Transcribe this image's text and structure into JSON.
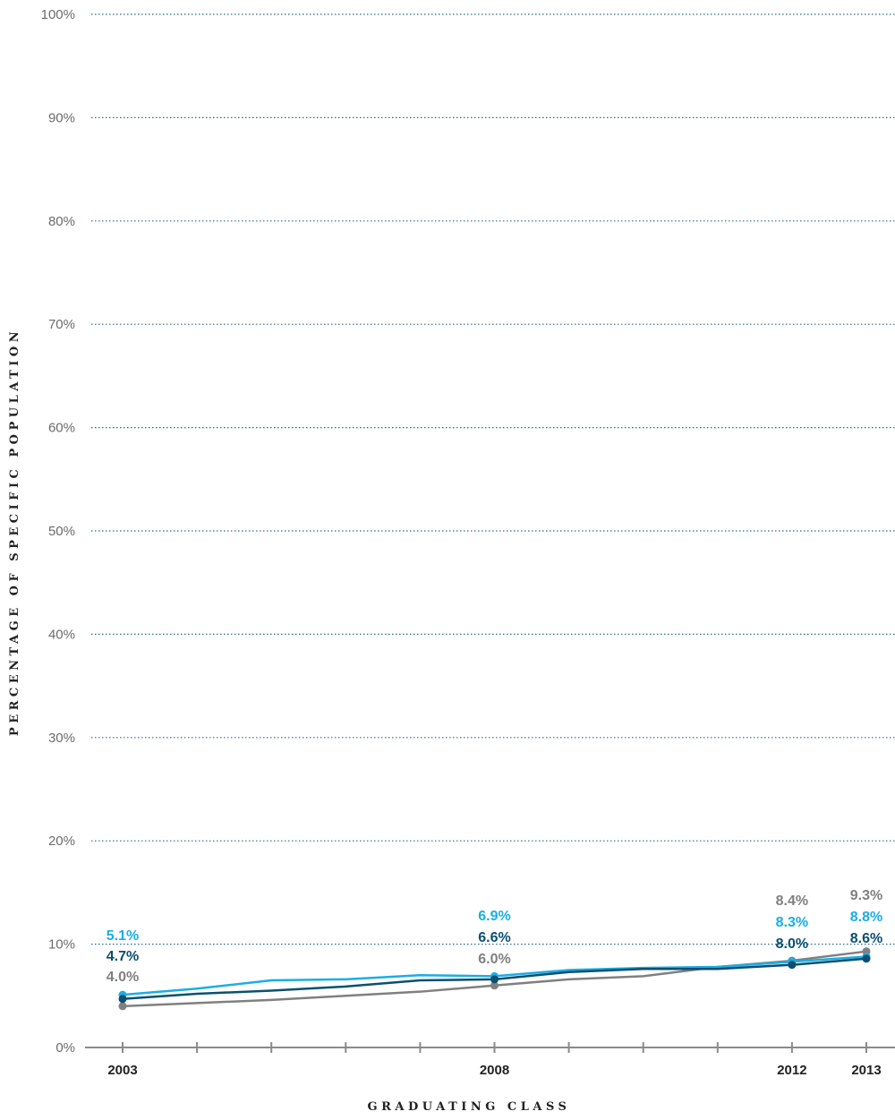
{
  "chart_data": {
    "type": "line",
    "title": "",
    "xlabel": "GRADUATING CLASS",
    "ylabel": "PERCENTAGE OF SPECIFIC POPULATION",
    "x": [
      2003,
      2004,
      2005,
      2006,
      2007,
      2008,
      2009,
      2010,
      2011,
      2012,
      2013
    ],
    "xticks_labeled": [
      "2003",
      "2008",
      "2012",
      "2013"
    ],
    "ylim": [
      0,
      100
    ],
    "yticks": [
      "0%",
      "10%",
      "20%",
      "30%",
      "40%",
      "50%",
      "60%",
      "70%",
      "80%",
      "90%",
      "100%"
    ],
    "grid": "horizontal-dotted",
    "series": [
      {
        "color": "#1aaee5",
        "values": [
          5.1,
          5.7,
          6.5,
          6.6,
          7.0,
          6.9,
          7.5,
          7.7,
          7.8,
          8.3,
          8.8
        ]
      },
      {
        "color": "#0b4f71",
        "values": [
          4.7,
          5.2,
          5.5,
          5.9,
          6.5,
          6.6,
          7.3,
          7.6,
          7.6,
          8.0,
          8.6
        ]
      },
      {
        "color": "#808080",
        "values": [
          4.0,
          4.3,
          4.6,
          5.0,
          5.4,
          6.0,
          6.6,
          6.9,
          7.8,
          8.4,
          9.3
        ]
      }
    ],
    "data_labels": [
      {
        "series": 0,
        "x": 2003,
        "text": "5.1%"
      },
      {
        "series": 1,
        "x": 2003,
        "text": "4.7%"
      },
      {
        "series": 2,
        "x": 2003,
        "text": "4.0%"
      },
      {
        "series": 0,
        "x": 2008,
        "text": "6.9%"
      },
      {
        "series": 1,
        "x": 2008,
        "text": "6.6%"
      },
      {
        "series": 2,
        "x": 2008,
        "text": "6.0%"
      },
      {
        "series": 2,
        "x": 2012,
        "text": "8.4%"
      },
      {
        "series": 0,
        "x": 2012,
        "text": "8.3%"
      },
      {
        "series": 1,
        "x": 2012,
        "text": "8.0%"
      },
      {
        "series": 2,
        "x": 2013,
        "text": "9.3%"
      },
      {
        "series": 0,
        "x": 2013,
        "text": "8.8%"
      },
      {
        "series": 1,
        "x": 2013,
        "text": "8.6%"
      }
    ]
  }
}
